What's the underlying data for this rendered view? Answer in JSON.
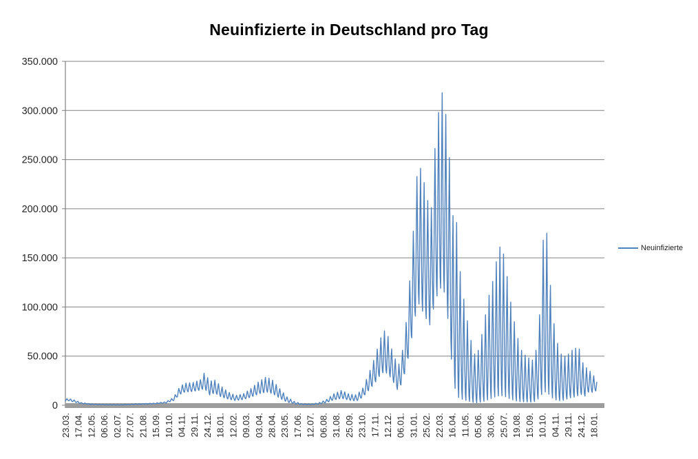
{
  "chart_data": {
    "type": "line",
    "title": "Neuinfizierte in Deutschland pro Tag",
    "series": [
      {
        "name": "Neuinfizierte",
        "color": "#4F81BD"
      }
    ],
    "colors": {
      "background": "#FFFFFF",
      "gridline": "#808080",
      "axis_line": "#808080",
      "axis_bar": "#9C9C9C",
      "tick_text": "#262626",
      "title_text": "#000000"
    },
    "legend_position": "right",
    "grid": "horizontal",
    "ylim": [
      0,
      350000
    ],
    "y_tick_interval": 50000,
    "y_tick_values": [
      350000,
      300000,
      250000,
      200000,
      150000,
      100000,
      50000,
      0
    ],
    "y_tick_labels": [
      "350.000",
      "300.000",
      "250.000",
      "200.000",
      "150.000",
      "100.000",
      "50.000",
      "0"
    ],
    "x_tick_interval_days": 25,
    "x_tick_labels": [
      "23.03.",
      "17.04.",
      "12.05.",
      "06.06.",
      "02.07.",
      "27.07.",
      "21.08.",
      "15.09.",
      "10.10.",
      "04.11.",
      "29.11.",
      "24.12.",
      "18.01.",
      "12.02.",
      "09.03.",
      "03.04.",
      "28.04.",
      "23.05.",
      "17.06.",
      "12.07.",
      "06.08.",
      "31.08.",
      "25.09.",
      "23.10.",
      "17.11.",
      "12.12.",
      "06.01.",
      "31.01.",
      "25.02.",
      "22.03.",
      "16.04.",
      "11.05.",
      "05.06.",
      "30.06.",
      "25.07.",
      "19.08.",
      "15.09.",
      "10.10.",
      "04.11.",
      "29.11.",
      "24.12.",
      "18.01."
    ],
    "x_range_note": "daily values from 23.03.2020 to 18.01.2023",
    "total_days": 1032,
    "weekly_pattern": [
      1,
      0.66,
      0.3,
      0.07,
      0,
      0.32,
      0.7
    ],
    "weekly_phase_offset": 4,
    "envelope_format": [
      "day_index",
      "weekly_high",
      "weekly_low"
    ],
    "envelope": [
      [
        0,
        6500,
        4200
      ],
      [
        7,
        6900,
        4500
      ],
      [
        18,
        5200,
        3200
      ],
      [
        30,
        2800,
        1700
      ],
      [
        50,
        1400,
        700
      ],
      [
        80,
        750,
        350
      ],
      [
        110,
        650,
        300
      ],
      [
        140,
        1500,
        800
      ],
      [
        170,
        2100,
        1300
      ],
      [
        195,
        3600,
        2200
      ],
      [
        210,
        8000,
        4800
      ],
      [
        222,
        19000,
        11000
      ],
      [
        232,
        22500,
        13500
      ],
      [
        247,
        23000,
        14000
      ],
      [
        262,
        26000,
        15500
      ],
      [
        270,
        33500,
        17000
      ],
      [
        280,
        24500,
        10500
      ],
      [
        290,
        25500,
        12500
      ],
      [
        302,
        19500,
        8500
      ],
      [
        316,
        13500,
        6200
      ],
      [
        330,
        10000,
        4800
      ],
      [
        345,
        11500,
        5800
      ],
      [
        360,
        17000,
        8200
      ],
      [
        375,
        24000,
        11500
      ],
      [
        390,
        29000,
        13500
      ],
      [
        402,
        25500,
        11800
      ],
      [
        415,
        17500,
        7500
      ],
      [
        430,
        8500,
        3200
      ],
      [
        445,
        3600,
        1300
      ],
      [
        460,
        1500,
        600
      ],
      [
        478,
        1300,
        500
      ],
      [
        492,
        2600,
        1100
      ],
      [
        506,
        5600,
        2600
      ],
      [
        520,
        11500,
        5400
      ],
      [
        536,
        15200,
        7000
      ],
      [
        550,
        11500,
        5200
      ],
      [
        565,
        10500,
        4300
      ],
      [
        577,
        17500,
        8200
      ],
      [
        590,
        34000,
        16000
      ],
      [
        601,
        50000,
        23000
      ],
      [
        610,
        66000,
        30000
      ],
      [
        618,
        76500,
        34000
      ],
      [
        626,
        70000,
        32000
      ],
      [
        636,
        52000,
        24000
      ],
      [
        646,
        40000,
        14000
      ],
      [
        655,
        58000,
        26000
      ],
      [
        663,
        93000,
        42000
      ],
      [
        670,
        140000,
        62000
      ],
      [
        677,
        192000,
        85000
      ],
      [
        684,
        249000,
        105000
      ],
      [
        691,
        238000,
        98000
      ],
      [
        698,
        222000,
        90000
      ],
      [
        709,
        192000,
        80000
      ],
      [
        716,
        256000,
        105000
      ],
      [
        724,
        298000,
        115000
      ],
      [
        731,
        318000,
        122000
      ],
      [
        738,
        296000,
        110000
      ],
      [
        745,
        252000,
        72000
      ],
      [
        752,
        193000,
        28000
      ],
      [
        759,
        186000,
        9000
      ],
      [
        766,
        136000,
        7000
      ],
      [
        773,
        108000,
        5500
      ],
      [
        780,
        86000,
        4500
      ],
      [
        787,
        66000,
        3500
      ],
      [
        794,
        52000,
        2500
      ],
      [
        801,
        56000,
        2500
      ],
      [
        808,
        72000,
        3500
      ],
      [
        815,
        92000,
        4500
      ],
      [
        822,
        112000,
        6000
      ],
      [
        829,
        126000,
        7500
      ],
      [
        836,
        146000,
        9000
      ],
      [
        843,
        161000,
        10000
      ],
      [
        850,
        154000,
        9500
      ],
      [
        857,
        131000,
        8000
      ],
      [
        864,
        105000,
        6000
      ],
      [
        871,
        85000,
        5000
      ],
      [
        878,
        68000,
        4000
      ],
      [
        885,
        56000,
        3500
      ],
      [
        892,
        51000,
        3500
      ],
      [
        899,
        48000,
        3200
      ],
      [
        906,
        46000,
        3200
      ],
      [
        913,
        56000,
        4200
      ],
      [
        920,
        92000,
        8000
      ],
      [
        927,
        168000,
        13000
      ],
      [
        934,
        175000,
        14000
      ],
      [
        941,
        122000,
        9000
      ],
      [
        948,
        83000,
        6000
      ],
      [
        955,
        63000,
        5000
      ],
      [
        962,
        52000,
        4500
      ],
      [
        969,
        50000,
        5500
      ],
      [
        976,
        52000,
        7000
      ],
      [
        983,
        56000,
        8000
      ],
      [
        990,
        58000,
        8500
      ],
      [
        995,
        62000,
        10000
      ],
      [
        1002,
        45000,
        11000
      ],
      [
        1009,
        39000,
        9000
      ],
      [
        1016,
        36000,
        14000
      ],
      [
        1023,
        31000,
        13000
      ],
      [
        1031,
        27000,
        15000
      ]
    ]
  }
}
